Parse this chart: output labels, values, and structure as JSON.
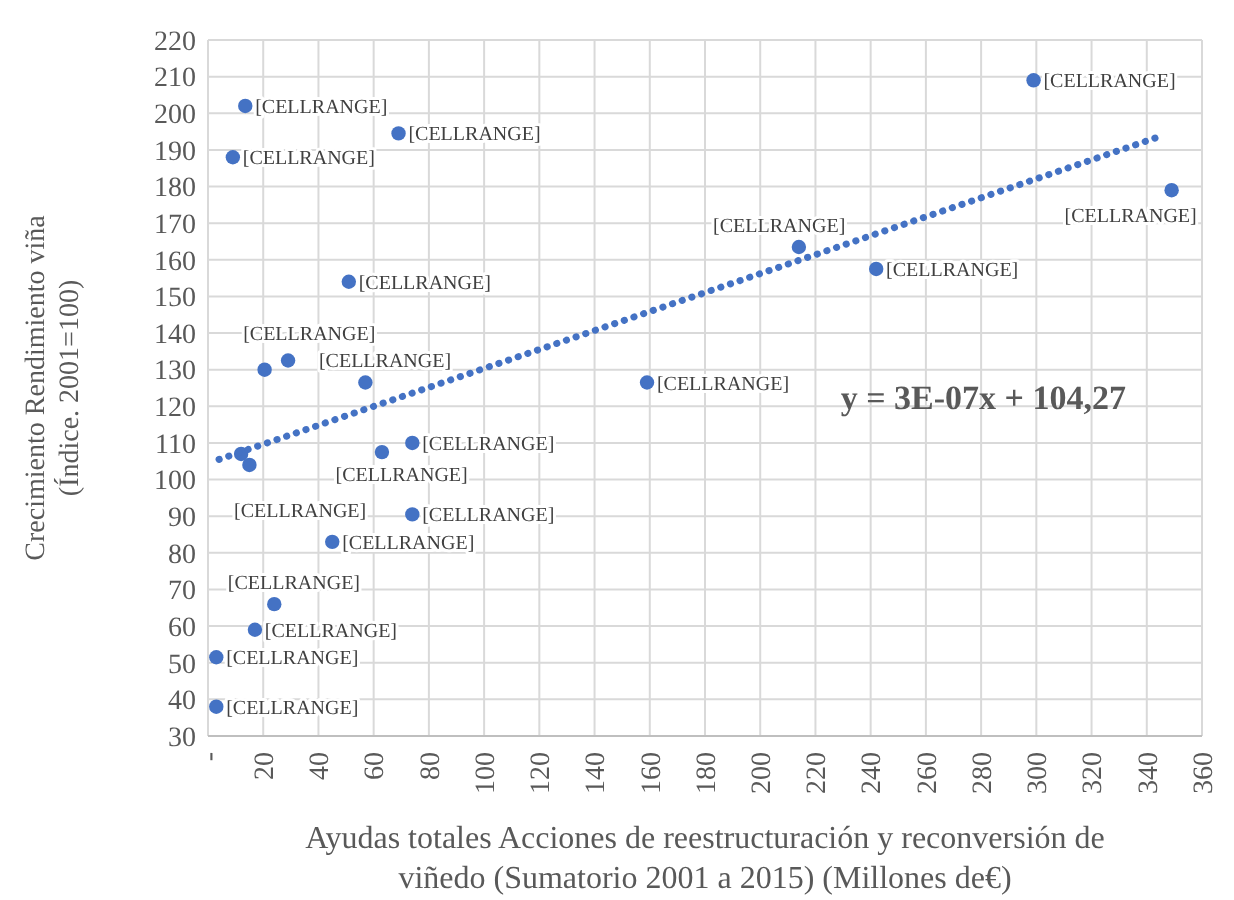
{
  "chart_data": {
    "type": "scatter",
    "xlabel": "Ayudas totales Acciones de reestructuración y reconversión de viñedo (Sumatorio 2001 a 2015) (Millones de€)",
    "ylabel": "Crecimiento Rendimiento viña (Índice. 2001=100)",
    "xlim": [
      0,
      360
    ],
    "xticks": [
      {
        "value": 0,
        "label": "-"
      },
      20,
      40,
      60,
      80,
      100,
      120,
      140,
      160,
      180,
      200,
      220,
      240,
      260,
      280,
      300,
      320,
      340,
      360
    ],
    "ylim": [
      30,
      220
    ],
    "yticks": [
      30,
      40,
      50,
      60,
      70,
      80,
      90,
      100,
      110,
      120,
      130,
      140,
      150,
      160,
      170,
      180,
      190,
      200,
      210,
      220
    ],
    "grid": true,
    "series": [
      {
        "color": "#4472c4",
        "marker": "circle",
        "x": [
          3,
          3,
          17,
          24,
          45,
          12,
          15,
          63,
          74,
          74,
          159,
          57,
          20.5,
          29,
          51,
          9,
          13.5,
          69,
          214,
          242,
          299,
          349
        ],
        "values": [
          38,
          51.5,
          59,
          66,
          83,
          107,
          104,
          107.5,
          110,
          90.5,
          126.5,
          126.5,
          130,
          132.5,
          154,
          188,
          202,
          194.5,
          163.5,
          157.5,
          209,
          179
        ],
        "value_labels": [
          "[CELLRANGE]",
          "[CELLRANGE]",
          "[CELLRANGE]",
          "[CELLRANGE]",
          "[CELLRANGE]",
          "[CELLRANGE]",
          null,
          "[CELLRANGE]",
          "[CELLRANGE]",
          "[CELLRANGE]",
          "[CELLRANGE]",
          "[CELLRANGE]",
          null,
          "[CELLRANGE]",
          "[CELLRANGE]",
          "[CELLRANGE]",
          "[CELLRANGE]",
          "[CELLRANGE]",
          "[CELLRANGE]",
          "[CELLRANGE]",
          "[CELLRANGE]",
          "[CELLRANGE]"
        ]
      },
      {
        "type": "line",
        "color": "#4472c4",
        "marker": "none",
        "line_style": "dotted",
        "x": [
          4,
          346
        ],
        "values": [
          105.5,
          194
        ]
      }
    ],
    "annotations": [
      "y = 3E-07x + 104,27"
    ]
  }
}
